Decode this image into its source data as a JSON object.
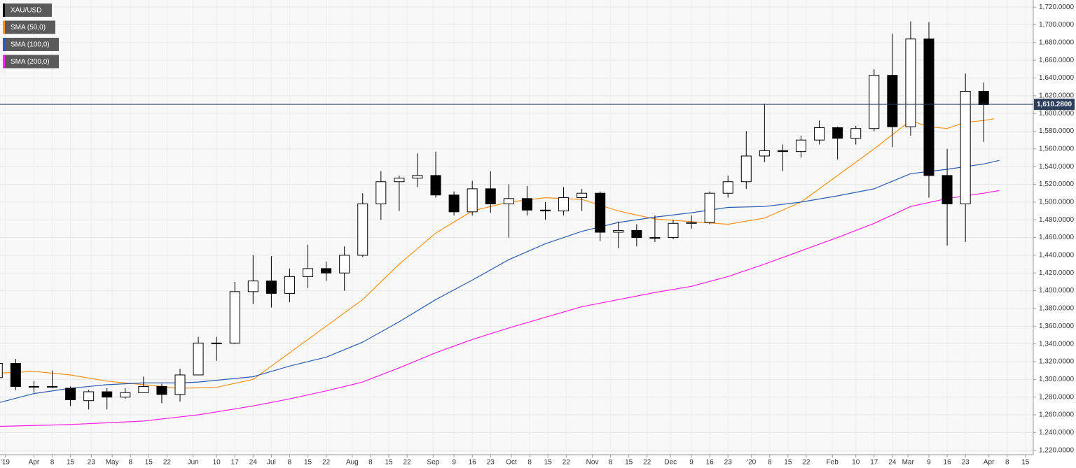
{
  "chart_data": {
    "type": "candlestick",
    "name": "XAU/USD",
    "up_color": "#ffffff",
    "down_color": "#000000",
    "x": [
      -14,
      -7,
      0,
      7,
      14,
      21,
      28,
      35,
      42,
      49,
      56,
      63,
      70,
      77,
      84,
      91,
      98,
      105,
      112,
      119,
      126,
      133,
      140,
      147,
      154,
      161,
      168,
      175,
      182,
      189,
      196,
      203,
      210,
      217,
      224,
      231,
      238,
      245,
      252,
      259,
      266,
      273,
      280,
      287,
      294,
      301,
      308,
      315,
      322,
      329,
      336,
      343,
      350,
      357,
      364
    ],
    "open": [
      1302,
      1318,
      1292,
      1292,
      1290,
      1276,
      1286,
      1280,
      1285,
      1292,
      1283,
      1305,
      1341,
      1341,
      1399,
      1411,
      1397,
      1416,
      1425,
      1420,
      1440,
      1498,
      1523,
      1527,
      1530,
      1508,
      1489,
      1515,
      1498,
      1504,
      1491,
      1490,
      1505,
      1510,
      1466,
      1468,
      1460,
      1460,
      1476,
      1477,
      1510,
      1523,
      1552,
      1558,
      1557,
      1570,
      1584,
      1572,
      1583,
      1643,
      1585,
      1684,
      1530,
      1498,
      1625
    ],
    "high": [
      1324,
      1323,
      1298,
      1310,
      1292,
      1288,
      1290,
      1290,
      1303,
      1295,
      1312,
      1348,
      1348,
      1410,
      1440,
      1439,
      1425,
      1452,
      1433,
      1450,
      1510,
      1535,
      1530,
      1555,
      1557,
      1512,
      1524,
      1535,
      1520,
      1518,
      1500,
      1517,
      1515,
      1512,
      1478,
      1475,
      1485,
      1480,
      1485,
      1512,
      1530,
      1580,
      1611,
      1565,
      1575,
      1592,
      1585,
      1586,
      1650,
      1690,
      1704,
      1703,
      1560,
      1645,
      1635
    ],
    "low": [
      1300,
      1288,
      1285,
      1290,
      1270,
      1266,
      1266,
      1278,
      1285,
      1273,
      1275,
      1305,
      1321,
      1340,
      1385,
      1381,
      1387,
      1403,
      1411,
      1400,
      1438,
      1480,
      1490,
      1517,
      1505,
      1485,
      1485,
      1488,
      1460,
      1485,
      1480,
      1485,
      1490,
      1456,
      1448,
      1450,
      1455,
      1458,
      1470,
      1475,
      1505,
      1515,
      1545,
      1535,
      1550,
      1565,
      1548,
      1565,
      1580,
      1562,
      1575,
      1505,
      1451,
      1455,
      1568
    ],
    "close": [
      1318,
      1292,
      1292,
      1292,
      1277,
      1286,
      1280,
      1285,
      1292,
      1283,
      1305,
      1341,
      1341,
      1399,
      1411,
      1397,
      1416,
      1425,
      1420,
      1440,
      1498,
      1523,
      1527,
      1530,
      1508,
      1489,
      1515,
      1498,
      1504,
      1491,
      1490,
      1505,
      1510,
      1466,
      1468,
      1460,
      1460,
      1476,
      1477,
      1510,
      1523,
      1552,
      1558,
      1557,
      1570,
      1584,
      1572,
      1583,
      1643,
      1585,
      1684,
      1530,
      1498,
      1625,
      1610
    ],
    "current_price": {
      "value": 1610.28,
      "label": "1,610.2800"
    },
    "price_line_color": "#2b3f5c",
    "overlays": [
      {
        "name": "SMA (50,0)",
        "color": "#f7931e",
        "x": [
          -13,
          0,
          14,
          28,
          42,
          56,
          70,
          84,
          98,
          112,
          126,
          140,
          154,
          168,
          182,
          196,
          210,
          224,
          238,
          252,
          266,
          280,
          294,
          308,
          322,
          336,
          343,
          350,
          357,
          364,
          368
        ],
        "values": [
          1307,
          1309,
          1305,
          1298,
          1294,
          1290,
          1291,
          1300,
          1330,
          1360,
          1390,
          1430,
          1465,
          1490,
          1500,
          1505,
          1503,
          1490,
          1481,
          1478,
          1475,
          1482,
          1500,
          1530,
          1560,
          1592,
          1585,
          1583,
          1590,
          1592,
          1594
        ]
      },
      {
        "name": "SMA (100,0)",
        "color": "#2a5db0",
        "x": [
          -13,
          0,
          14,
          28,
          42,
          56,
          63,
          84,
          98,
          112,
          126,
          140,
          154,
          168,
          182,
          196,
          210,
          224,
          238,
          252,
          266,
          280,
          294,
          308,
          322,
          336,
          350,
          364,
          370
        ],
        "values": [
          1274,
          1284,
          1290,
          1294,
          1296,
          1296,
          1297,
          1303,
          1315,
          1325,
          1342,
          1365,
          1390,
          1412,
          1435,
          1453,
          1467,
          1477,
          1483,
          1488,
          1494,
          1495,
          1500,
          1507,
          1515,
          1532,
          1537,
          1543,
          1547
        ]
      },
      {
        "name": "SMA (200,0)",
        "color": "#ff1ee6",
        "x": [
          -13,
          14,
          42,
          63,
          84,
          98,
          112,
          126,
          140,
          154,
          168,
          182,
          196,
          210,
          224,
          238,
          252,
          266,
          280,
          294,
          308,
          322,
          336,
          350,
          364,
          370
        ],
        "values": [
          1247,
          1249,
          1253,
          1260,
          1270,
          1278,
          1287,
          1297,
          1313,
          1330,
          1345,
          1358,
          1370,
          1382,
          1390,
          1398,
          1405,
          1416,
          1430,
          1445,
          1460,
          1476,
          1495,
          1504,
          1510,
          1513
        ]
      }
    ],
    "xlim": [
      -13,
      383
    ],
    "xticks": [
      {
        "value": -11,
        "label": "'19"
      },
      {
        "value": 0,
        "label": "Apr"
      },
      {
        "value": 7,
        "label": "8"
      },
      {
        "value": 14,
        "label": "15"
      },
      {
        "value": 22,
        "label": "23"
      },
      {
        "value": 30,
        "label": "May"
      },
      {
        "value": 37,
        "label": "8"
      },
      {
        "value": 44,
        "label": "15"
      },
      {
        "value": 51,
        "label": "22"
      },
      {
        "value": 61,
        "label": "Jun"
      },
      {
        "value": 70,
        "label": "10"
      },
      {
        "value": 77,
        "label": "17"
      },
      {
        "value": 84,
        "label": "24"
      },
      {
        "value": 91,
        "label": "Jul"
      },
      {
        "value": 98,
        "label": "8"
      },
      {
        "value": 105,
        "label": "15"
      },
      {
        "value": 112,
        "label": "22"
      },
      {
        "value": 122,
        "label": "Aug"
      },
      {
        "value": 129,
        "label": "8"
      },
      {
        "value": 136,
        "label": "15"
      },
      {
        "value": 143,
        "label": "22"
      },
      {
        "value": 153,
        "label": "Sep"
      },
      {
        "value": 161,
        "label": "9"
      },
      {
        "value": 168,
        "label": "16"
      },
      {
        "value": 175,
        "label": "23"
      },
      {
        "value": 183,
        "label": "Oct"
      },
      {
        "value": 190,
        "label": "8"
      },
      {
        "value": 197,
        "label": "15"
      },
      {
        "value": 204,
        "label": "22"
      },
      {
        "value": 214,
        "label": "Nov"
      },
      {
        "value": 221,
        "label": "8"
      },
      {
        "value": 228,
        "label": "15"
      },
      {
        "value": 235,
        "label": "22"
      },
      {
        "value": 244,
        "label": "Dec"
      },
      {
        "value": 252,
        "label": "9"
      },
      {
        "value": 259,
        "label": "16"
      },
      {
        "value": 266,
        "label": "23"
      },
      {
        "value": 275,
        "label": "'20"
      },
      {
        "value": 282,
        "label": "8"
      },
      {
        "value": 289,
        "label": "15"
      },
      {
        "value": 296,
        "label": "22"
      },
      {
        "value": 306,
        "label": "Feb"
      },
      {
        "value": 315,
        "label": "10"
      },
      {
        "value": 322,
        "label": "17"
      },
      {
        "value": 329,
        "label": "24"
      },
      {
        "value": 335,
        "label": "Mar"
      },
      {
        "value": 343,
        "label": "9"
      },
      {
        "value": 350,
        "label": "16"
      },
      {
        "value": 357,
        "label": "23"
      },
      {
        "value": 366,
        "label": "Apr"
      },
      {
        "value": 373,
        "label": "8"
      },
      {
        "value": 380,
        "label": "15"
      }
    ],
    "ylim": [
      1215,
      1728
    ],
    "yticks": [
      {
        "value": 1220,
        "label": "1,220.0000"
      },
      {
        "value": 1240,
        "label": "1,240.0000"
      },
      {
        "value": 1260,
        "label": "1,260.0000"
      },
      {
        "value": 1280,
        "label": "1,280.0000"
      },
      {
        "value": 1300,
        "label": "1,300.0000"
      },
      {
        "value": 1320,
        "label": "1,320.0000"
      },
      {
        "value": 1340,
        "label": "1,340.0000"
      },
      {
        "value": 1360,
        "label": "1,360.0000"
      },
      {
        "value": 1380,
        "label": "1,380.0000"
      },
      {
        "value": 1400,
        "label": "1,400.0000"
      },
      {
        "value": 1420,
        "label": "1,420.0000"
      },
      {
        "value": 1440,
        "label": "1,440.0000"
      },
      {
        "value": 1460,
        "label": "1,460.0000"
      },
      {
        "value": 1480,
        "label": "1,480.0000"
      },
      {
        "value": 1500,
        "label": "1,500.0000"
      },
      {
        "value": 1520,
        "label": "1,520.0000"
      },
      {
        "value": 1540,
        "label": "1,540.0000"
      },
      {
        "value": 1560,
        "label": "1,560.0000"
      },
      {
        "value": 1580,
        "label": "1,580.0000"
      },
      {
        "value": 1600,
        "label": "1,600.0000"
      },
      {
        "value": 1620,
        "label": "1,620.0000"
      },
      {
        "value": 1640,
        "label": "1,640.0000"
      },
      {
        "value": 1660,
        "label": "1,660.0000"
      },
      {
        "value": 1680,
        "label": "1,680.0000"
      },
      {
        "value": 1700,
        "label": "1,700.0000"
      },
      {
        "value": 1720,
        "label": "1,720.0000"
      }
    ],
    "grid": true
  }
}
